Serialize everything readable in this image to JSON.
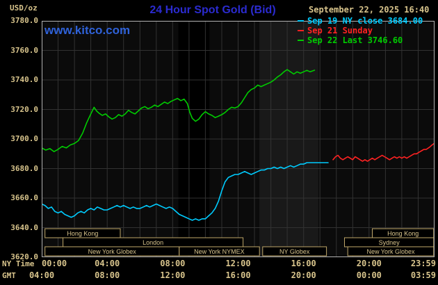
{
  "header": {
    "units_label": "USD/oz",
    "title": "24 Hour Spot Gold (Bid)",
    "timestamp": "September 22, 2025 16:40",
    "watermark": "www.kitco.com"
  },
  "legend": [
    {
      "label": "Sep 19 NY close 3684.00",
      "color": "#00ccff"
    },
    {
      "label": "Sep 21 Sunday",
      "color": "#ff2222"
    },
    {
      "label": "Sep 22 Last 3746.60",
      "color": "#00cc00"
    }
  ],
  "colors": {
    "background": "#000000",
    "plot_background": "#0b0b0b",
    "grid": "#323232",
    "plot_border": "#b4b4b4",
    "axis_text": "#d8c48c",
    "title_blue": "#2b2bd0",
    "kitco_blue": "#2f62d9",
    "session_box_border": "#bfa76a",
    "band_dark": "#000000",
    "band_light": "#191919"
  },
  "axes": {
    "ny_time_label": "NY Time",
    "gmt_label": "GMT",
    "tick_hours": [
      0,
      4,
      8,
      12,
      16,
      20,
      23.983
    ],
    "ny_labels": [
      "00:00",
      "04:00",
      "08:00",
      "12:00",
      "16:00",
      "20:00",
      "23:59"
    ],
    "gmt_labels": [
      "04:00",
      "08:00",
      "12:00",
      "16:00",
      "20:00",
      "00:00",
      "03:59"
    ],
    "y_tick_values": [
      3780,
      3760,
      3740,
      3720,
      3700,
      3680,
      3660,
      3640,
      3620
    ],
    "y_tick_labels": [
      "3780.0",
      "3760.0",
      "3740.0",
      "3720.0",
      "3700.0",
      "3680.0",
      "3660.0",
      "3640.0",
      "3620.0"
    ]
  },
  "sessions": [
    {
      "label": "Hong Kong",
      "row": 0,
      "start": 0.2,
      "end": 4.8
    },
    {
      "label": "Hong Kong",
      "row": 0,
      "start": 20.2,
      "end": 23.95
    },
    {
      "label": "London",
      "row": 1,
      "start": 1.3,
      "end": 12.3
    },
    {
      "label": "Sydney",
      "row": 1,
      "start": 18.5,
      "end": 23.95
    },
    {
      "label": "New York Globex",
      "row": 2,
      "start": 0.2,
      "end": 8.4
    },
    {
      "label": "New York NYMEX",
      "row": 2,
      "start": 8.4,
      "end": 13.3
    },
    {
      "label": "NY Globex",
      "row": 2,
      "start": 13.5,
      "end": 17.4
    },
    {
      "label": "New York Globex",
      "row": 2,
      "start": 18.7,
      "end": 23.95
    }
  ],
  "chart_data": {
    "type": "line",
    "title": "24 Hour Spot Gold (Bid)",
    "xlabel": "NY Time (hours)",
    "ylabel": "USD/oz",
    "ylim": [
      3620,
      3780
    ],
    "xlim_hours": [
      0,
      24
    ],
    "grid": true,
    "legend_position": "top-right",
    "shaded_bands": [
      {
        "start_hour": 8.35,
        "end_hour": 10.25,
        "color": "#000000"
      },
      {
        "start_hour": 13.3,
        "end_hour": 16.9,
        "color": "#191919"
      }
    ],
    "series": [
      {
        "name": "Sep 19 NY close",
        "color": "#00ccff",
        "last_value": 3684.0,
        "points": [
          [
            0,
            3656
          ],
          [
            0.2,
            3655
          ],
          [
            0.4,
            3653
          ],
          [
            0.6,
            3654
          ],
          [
            0.8,
            3651
          ],
          [
            1,
            3650
          ],
          [
            1.2,
            3651
          ],
          [
            1.4,
            3649
          ],
          [
            1.6,
            3648
          ],
          [
            1.8,
            3647
          ],
          [
            2,
            3648
          ],
          [
            2.2,
            3650
          ],
          [
            2.4,
            3651
          ],
          [
            2.6,
            3650
          ],
          [
            2.8,
            3652
          ],
          [
            3,
            3653
          ],
          [
            3.2,
            3652
          ],
          [
            3.4,
            3654
          ],
          [
            3.6,
            3653
          ],
          [
            3.8,
            3652
          ],
          [
            4,
            3652
          ],
          [
            4.2,
            3653
          ],
          [
            4.4,
            3654
          ],
          [
            4.6,
            3655
          ],
          [
            4.8,
            3654
          ],
          [
            5,
            3655
          ],
          [
            5.2,
            3654
          ],
          [
            5.4,
            3653
          ],
          [
            5.6,
            3654
          ],
          [
            5.8,
            3653
          ],
          [
            6,
            3653
          ],
          [
            6.2,
            3654
          ],
          [
            6.4,
            3655
          ],
          [
            6.6,
            3654
          ],
          [
            6.8,
            3655
          ],
          [
            7,
            3656
          ],
          [
            7.2,
            3655
          ],
          [
            7.4,
            3654
          ],
          [
            7.6,
            3653
          ],
          [
            7.8,
            3654
          ],
          [
            8,
            3653
          ],
          [
            8.2,
            3651
          ],
          [
            8.4,
            3649
          ],
          [
            8.6,
            3648
          ],
          [
            8.8,
            3647
          ],
          [
            9,
            3646
          ],
          [
            9.2,
            3645
          ],
          [
            9.4,
            3646
          ],
          [
            9.6,
            3645
          ],
          [
            9.8,
            3646
          ],
          [
            10,
            3646
          ],
          [
            10.2,
            3648
          ],
          [
            10.4,
            3650
          ],
          [
            10.6,
            3653
          ],
          [
            10.8,
            3658
          ],
          [
            11,
            3665
          ],
          [
            11.2,
            3671
          ],
          [
            11.4,
            3674
          ],
          [
            11.6,
            3675
          ],
          [
            11.8,
            3676
          ],
          [
            12,
            3676
          ],
          [
            12.2,
            3677
          ],
          [
            12.4,
            3678
          ],
          [
            12.6,
            3677
          ],
          [
            12.8,
            3676
          ],
          [
            13,
            3677
          ],
          [
            13.2,
            3678
          ],
          [
            13.4,
            3679
          ],
          [
            13.6,
            3679
          ],
          [
            13.8,
            3680
          ],
          [
            14,
            3680
          ],
          [
            14.2,
            3681
          ],
          [
            14.4,
            3680
          ],
          [
            14.6,
            3681
          ],
          [
            14.8,
            3680
          ],
          [
            15,
            3681
          ],
          [
            15.2,
            3682
          ],
          [
            15.4,
            3681
          ],
          [
            15.6,
            3682
          ],
          [
            15.8,
            3683
          ],
          [
            16,
            3683
          ],
          [
            16.2,
            3684
          ],
          [
            16.6,
            3684
          ],
          [
            17.5,
            3684
          ]
        ]
      },
      {
        "name": "Sep 21 Sunday",
        "color": "#ff2222",
        "last_value": 3697,
        "points": [
          [
            17.8,
            3686
          ],
          [
            17.95,
            3688
          ],
          [
            18.1,
            3689
          ],
          [
            18.25,
            3687
          ],
          [
            18.4,
            3686
          ],
          [
            18.55,
            3687
          ],
          [
            18.7,
            3688
          ],
          [
            18.85,
            3687
          ],
          [
            19,
            3686
          ],
          [
            19.15,
            3688
          ],
          [
            19.3,
            3687
          ],
          [
            19.45,
            3686
          ],
          [
            19.6,
            3685
          ],
          [
            19.75,
            3686
          ],
          [
            19.9,
            3685
          ],
          [
            20.05,
            3686
          ],
          [
            20.2,
            3687
          ],
          [
            20.35,
            3686
          ],
          [
            20.5,
            3687
          ],
          [
            20.65,
            3688
          ],
          [
            20.8,
            3689
          ],
          [
            20.95,
            3688
          ],
          [
            21.1,
            3687
          ],
          [
            21.25,
            3686
          ],
          [
            21.4,
            3687
          ],
          [
            21.55,
            3688
          ],
          [
            21.7,
            3687
          ],
          [
            21.85,
            3688
          ],
          [
            22,
            3687
          ],
          [
            22.15,
            3688
          ],
          [
            22.3,
            3687
          ],
          [
            22.45,
            3688
          ],
          [
            22.6,
            3689
          ],
          [
            22.75,
            3690
          ],
          [
            22.9,
            3690
          ],
          [
            23.05,
            3691
          ],
          [
            23.2,
            3692
          ],
          [
            23.35,
            3693
          ],
          [
            23.5,
            3693
          ],
          [
            23.7,
            3694.5
          ],
          [
            23.85,
            3696
          ],
          [
            23.98,
            3697
          ]
        ]
      },
      {
        "name": "Sep 22 Last",
        "color": "#00cc00",
        "last_value": 3746.6,
        "points": [
          [
            0,
            3694
          ],
          [
            0.25,
            3692.5
          ],
          [
            0.5,
            3693.5
          ],
          [
            0.75,
            3691.5
          ],
          [
            1,
            3693
          ],
          [
            1.25,
            3695
          ],
          [
            1.5,
            3694
          ],
          [
            1.75,
            3696
          ],
          [
            2,
            3697
          ],
          [
            2.25,
            3699
          ],
          [
            2.5,
            3704
          ],
          [
            2.75,
            3711
          ],
          [
            3,
            3717
          ],
          [
            3.2,
            3721.5
          ],
          [
            3.35,
            3719
          ],
          [
            3.5,
            3717.5
          ],
          [
            3.7,
            3716
          ],
          [
            3.9,
            3717
          ],
          [
            4.1,
            3715
          ],
          [
            4.3,
            3713.5
          ],
          [
            4.5,
            3714.5
          ],
          [
            4.7,
            3716.5
          ],
          [
            4.9,
            3715.5
          ],
          [
            5.1,
            3717
          ],
          [
            5.3,
            3719.5
          ],
          [
            5.5,
            3718
          ],
          [
            5.7,
            3717
          ],
          [
            5.9,
            3719
          ],
          [
            6.1,
            3721
          ],
          [
            6.3,
            3722
          ],
          [
            6.5,
            3720.5
          ],
          [
            6.7,
            3721.5
          ],
          [
            6.9,
            3723
          ],
          [
            7.1,
            3722
          ],
          [
            7.3,
            3723.5
          ],
          [
            7.5,
            3725
          ],
          [
            7.7,
            3724
          ],
          [
            7.9,
            3725.5
          ],
          [
            8.1,
            3726.5
          ],
          [
            8.3,
            3727.5
          ],
          [
            8.5,
            3726
          ],
          [
            8.7,
            3727
          ],
          [
            8.9,
            3724
          ],
          [
            9.05,
            3718
          ],
          [
            9.2,
            3714
          ],
          [
            9.4,
            3712
          ],
          [
            9.6,
            3713.5
          ],
          [
            9.8,
            3716.5
          ],
          [
            10,
            3718.5
          ],
          [
            10.2,
            3717
          ],
          [
            10.4,
            3716
          ],
          [
            10.6,
            3714.5
          ],
          [
            10.8,
            3715.5
          ],
          [
            11,
            3716.5
          ],
          [
            11.2,
            3718
          ],
          [
            11.4,
            3720
          ],
          [
            11.6,
            3721.5
          ],
          [
            11.8,
            3721
          ],
          [
            12,
            3722
          ],
          [
            12.2,
            3724.5
          ],
          [
            12.4,
            3728
          ],
          [
            12.6,
            3731.5
          ],
          [
            12.8,
            3733.5
          ],
          [
            13,
            3734.5
          ],
          [
            13.2,
            3736.5
          ],
          [
            13.4,
            3735.5
          ],
          [
            13.6,
            3736.5
          ],
          [
            13.8,
            3737.5
          ],
          [
            14,
            3738.5
          ],
          [
            14.2,
            3740
          ],
          [
            14.4,
            3742
          ],
          [
            14.6,
            3743.5
          ],
          [
            14.8,
            3745.5
          ],
          [
            15,
            3747
          ],
          [
            15.2,
            3745.5
          ],
          [
            15.4,
            3744
          ],
          [
            15.6,
            3745.5
          ],
          [
            15.8,
            3744.5
          ],
          [
            16,
            3745.5
          ],
          [
            16.2,
            3746.5
          ],
          [
            16.4,
            3745.5
          ],
          [
            16.67,
            3746.6
          ]
        ]
      }
    ]
  }
}
